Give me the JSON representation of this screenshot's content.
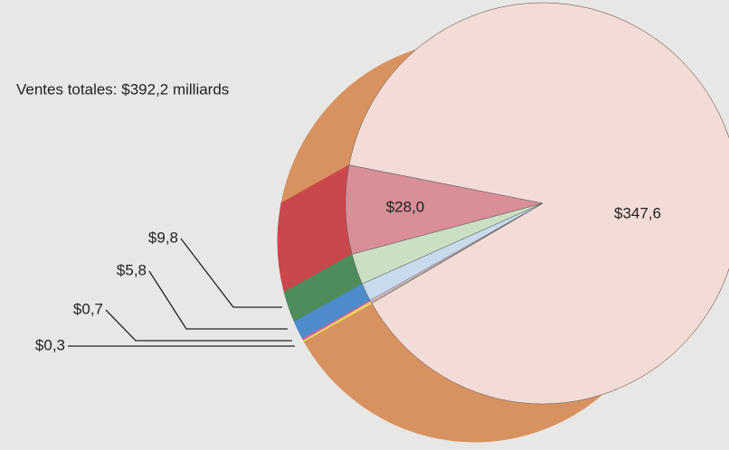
{
  "chart_data": {
    "type": "pie",
    "title": "Ventes totales: $392,2 milliards",
    "values": [
      347.6,
      28.0,
      9.8,
      5.8,
      0.7,
      0.3
    ],
    "value_labels": [
      "$347,6",
      "$28,0",
      "$9,8",
      "$5,8",
      "$0,7",
      "$0,3"
    ],
    "colors": [
      "#f3dcd8",
      "#d98e98",
      "#cadfc4",
      "#c8daec",
      "#e9c3da",
      "#f1ecb4"
    ],
    "side_colors": [
      "#d8925f",
      "#c8484c",
      "#4e8c5c",
      "#4d8bcb",
      "#c264a2",
      "#e6d65e"
    ]
  }
}
